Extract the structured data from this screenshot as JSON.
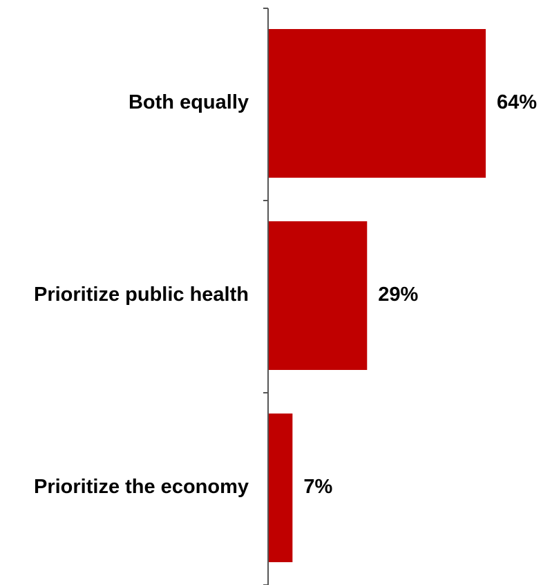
{
  "chart_data": {
    "type": "bar",
    "orientation": "horizontal",
    "categories": [
      "Both equally",
      "Prioritize public health",
      "Prioritize the economy"
    ],
    "values": [
      64,
      29,
      7
    ],
    "value_labels": [
      "64%",
      "29%",
      "7%"
    ],
    "unit": "%",
    "title": "",
    "xlabel": "",
    "ylabel": "",
    "xlim": [
      0,
      64
    ],
    "grid": false,
    "legend": "none",
    "colors": {
      "bar": "#c00000",
      "axis": "#555555",
      "text": "#000000"
    }
  }
}
